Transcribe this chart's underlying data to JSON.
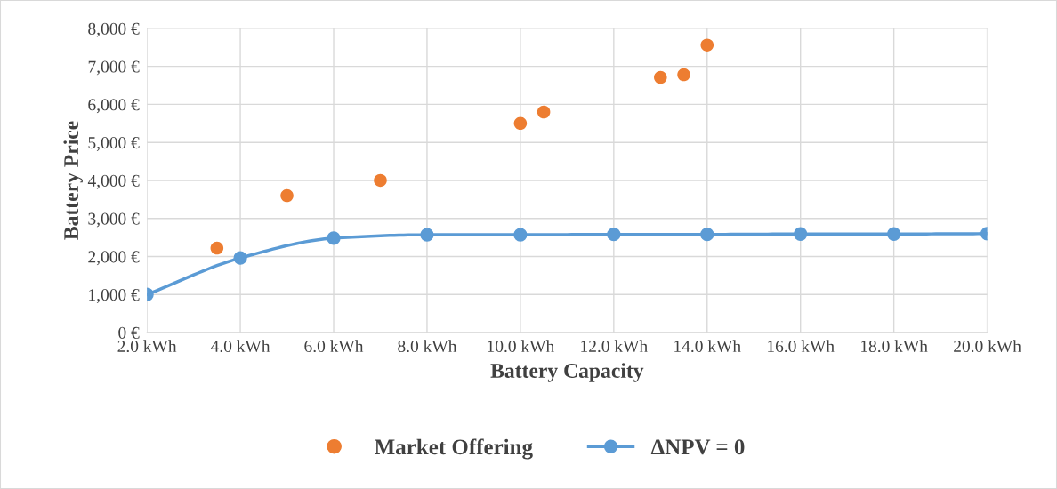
{
  "chart_data": {
    "type": "scatter",
    "xlabel": "Battery Capacity",
    "ylabel": "Battery Price",
    "xlim": [
      2,
      20
    ],
    "ylim": [
      0,
      8000
    ],
    "xticks": [
      {
        "value": 2,
        "label": "2.0 kWh"
      },
      {
        "value": 4,
        "label": "4.0 kWh"
      },
      {
        "value": 6,
        "label": "6.0 kWh"
      },
      {
        "value": 8,
        "label": "8.0 kWh"
      },
      {
        "value": 10,
        "label": "10.0 kWh"
      },
      {
        "value": 12,
        "label": "12.0 kWh"
      },
      {
        "value": 14,
        "label": "14.0 kWh"
      },
      {
        "value": 16,
        "label": "16.0 kWh"
      },
      {
        "value": 18,
        "label": "18.0 kWh"
      },
      {
        "value": 20,
        "label": "20.0 kWh"
      }
    ],
    "yticks": [
      {
        "value": 0,
        "label": "0 €"
      },
      {
        "value": 1000,
        "label": "1,000 €"
      },
      {
        "value": 2000,
        "label": "2,000 €"
      },
      {
        "value": 3000,
        "label": "3,000 €"
      },
      {
        "value": 4000,
        "label": "4,000 €"
      },
      {
        "value": 5000,
        "label": "5,000 €"
      },
      {
        "value": 6000,
        "label": "6,000 €"
      },
      {
        "value": 7000,
        "label": "7,000 €"
      },
      {
        "value": 8000,
        "label": "8,000 €"
      }
    ],
    "grid": true,
    "legend": "bottom",
    "marker": "circle",
    "series": [
      {
        "name": "Market Offering",
        "color": "#ed7d31",
        "x": [
          3.5,
          5,
          7,
          10,
          10.5,
          13,
          13.5,
          14
        ],
        "values": [
          2220,
          3600,
          4000,
          5500,
          5800,
          6710,
          6780,
          7560
        ]
      },
      {
        "name": "ΔNPV = 0",
        "type": "line",
        "color": "#5b9bd5",
        "line_style": "solid",
        "x": [
          2,
          4,
          6,
          8,
          10,
          12,
          14,
          16,
          18,
          20
        ],
        "values": [
          1000,
          1960,
          2480,
          2570,
          2570,
          2580,
          2580,
          2590,
          2590,
          2600
        ]
      }
    ]
  }
}
